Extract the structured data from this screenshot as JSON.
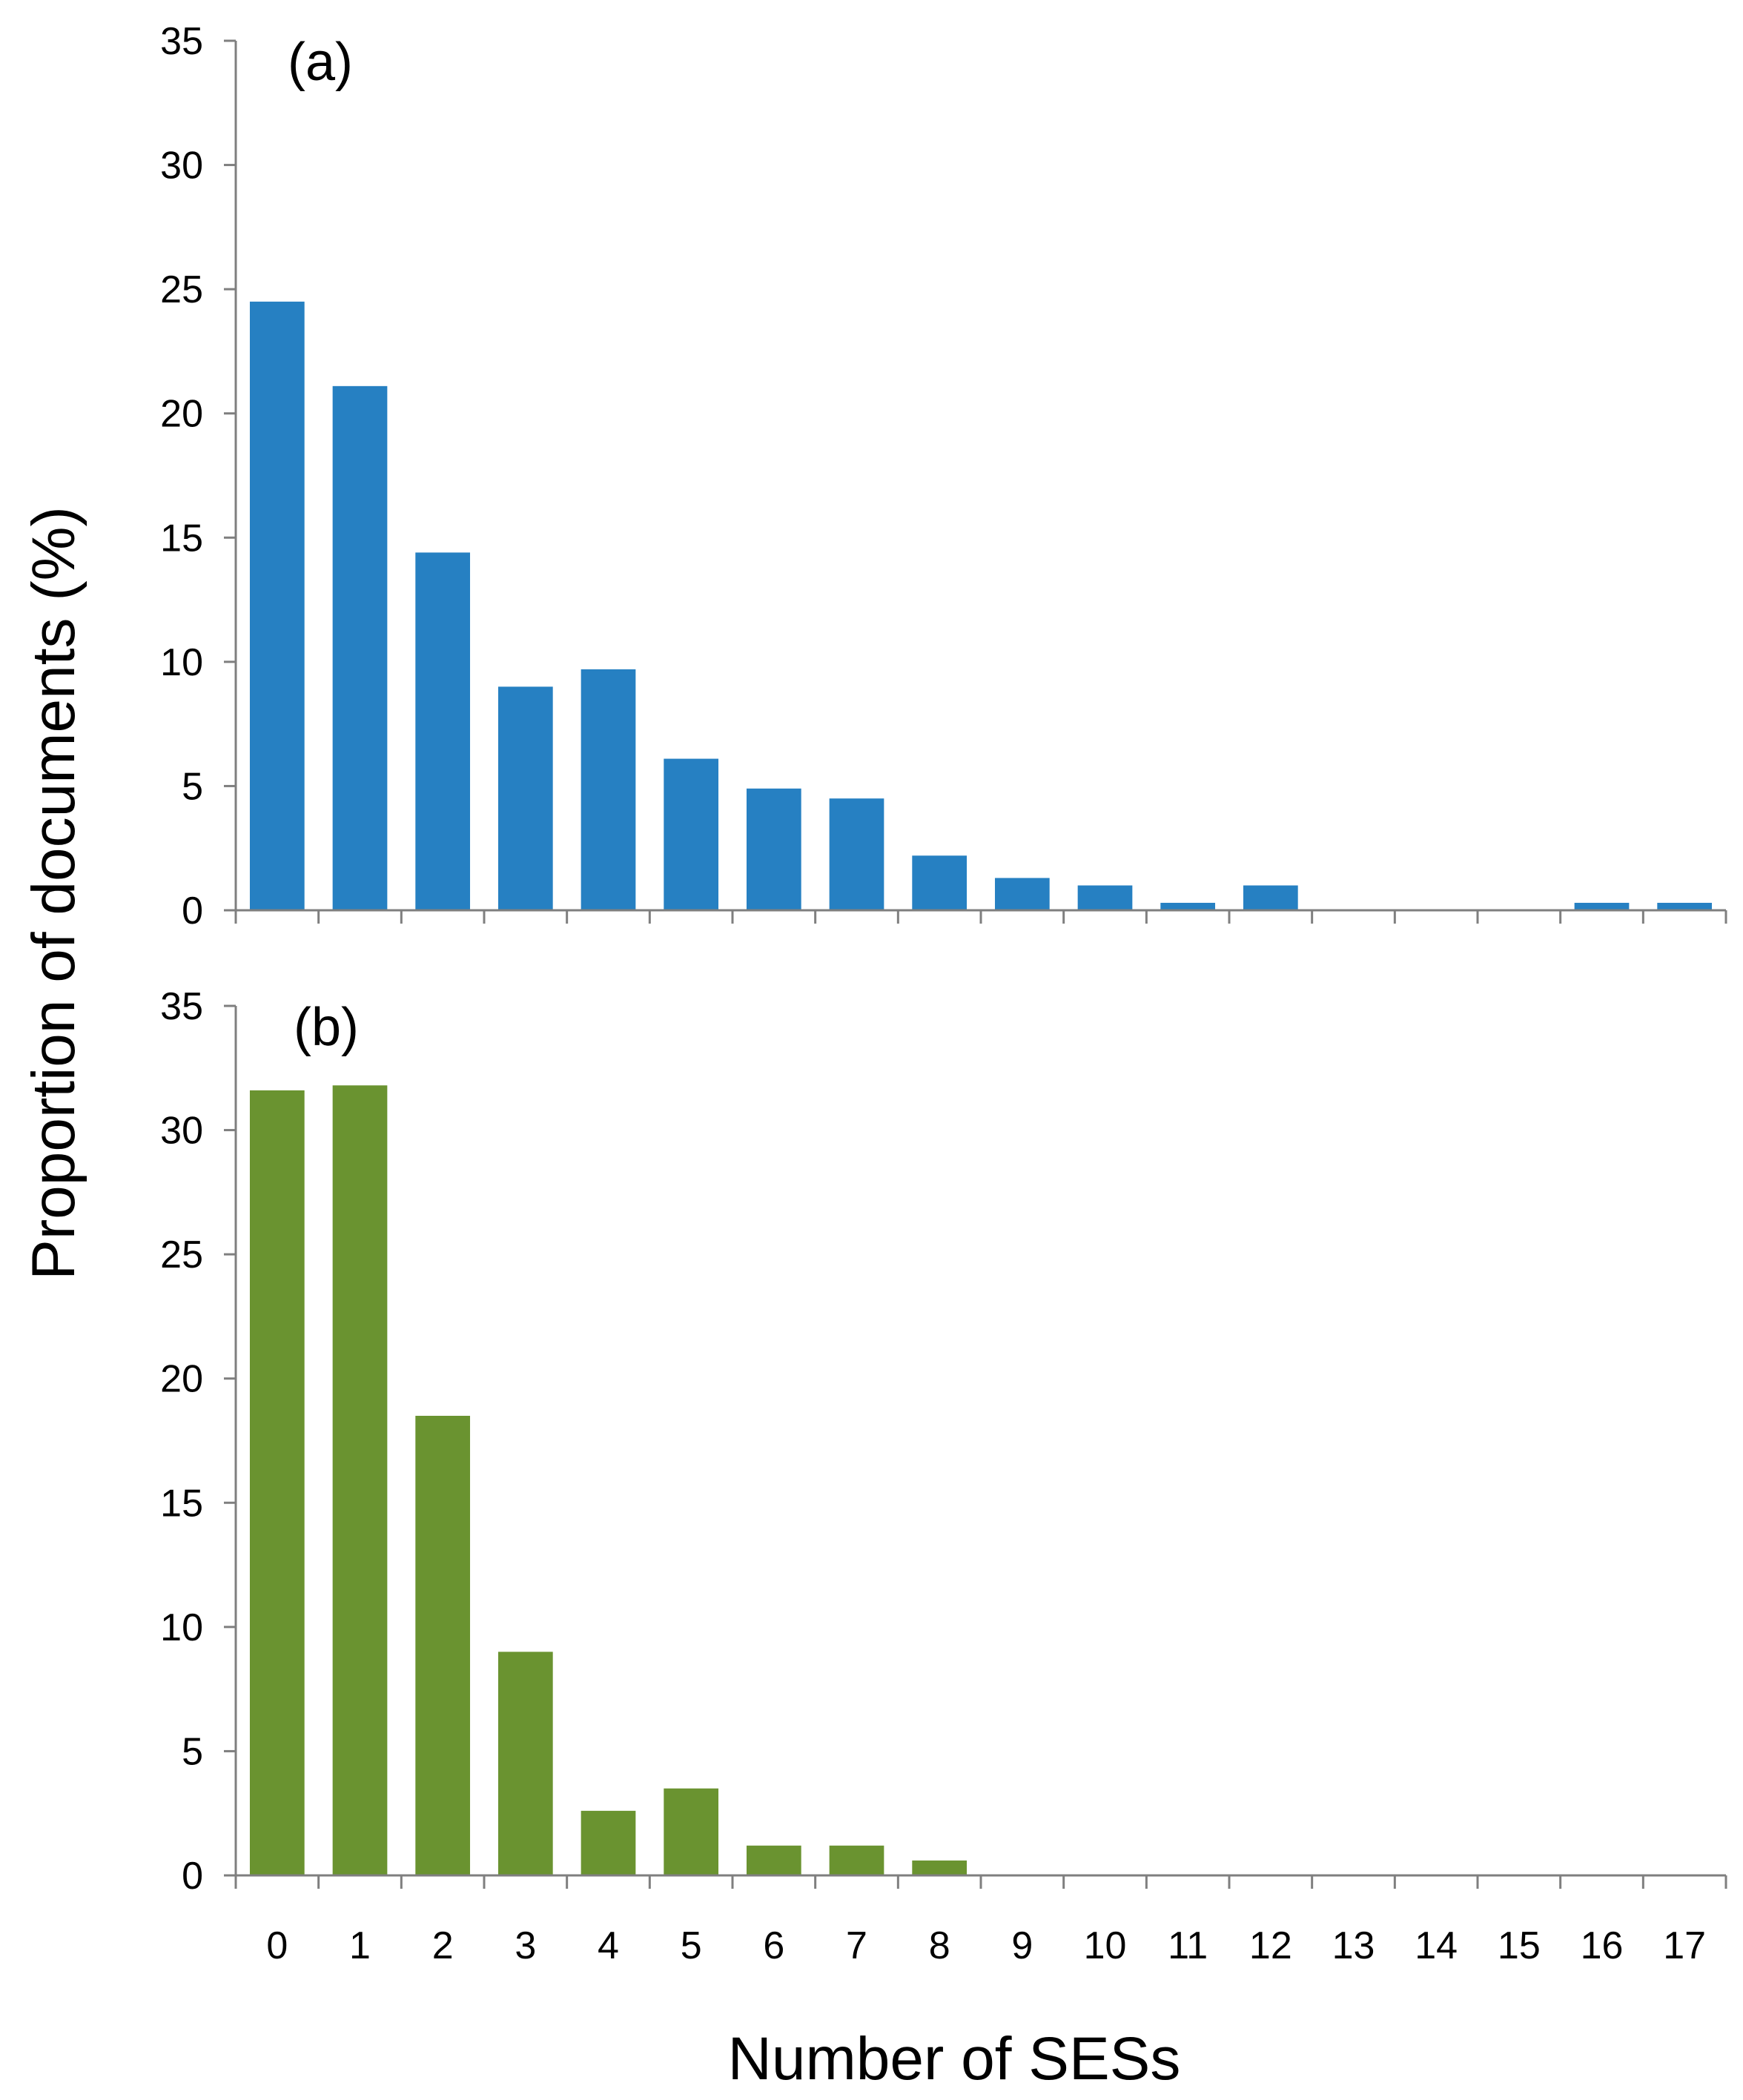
{
  "chart_data": {
    "type": "bar",
    "ylabel": "Proportion of documents  (%)",
    "xlabel": "Number of SESs",
    "categories": [
      "0",
      "1",
      "2",
      "3",
      "4",
      "5",
      "6",
      "7",
      "8",
      "9",
      "10",
      "11",
      "12",
      "13",
      "14",
      "15",
      "16",
      "17"
    ],
    "ylim": [
      0,
      35
    ],
    "yticks": [
      0,
      5,
      10,
      15,
      20,
      25,
      30,
      35
    ],
    "panels": [
      {
        "label": "(a)",
        "color": "#2680C2",
        "values": [
          24.5,
          21.1,
          14.4,
          9.0,
          9.7,
          6.1,
          4.9,
          4.5,
          2.2,
          1.3,
          1.0,
          0.3,
          1.0,
          0,
          0,
          0,
          0.3,
          0.3
        ]
      },
      {
        "label": "(b)",
        "color": "#6A9330",
        "values": [
          31.6,
          31.8,
          18.5,
          9.0,
          2.6,
          3.5,
          1.2,
          1.2,
          0.6,
          0,
          0,
          0,
          0,
          0,
          0,
          0,
          0,
          0
        ]
      }
    ]
  }
}
